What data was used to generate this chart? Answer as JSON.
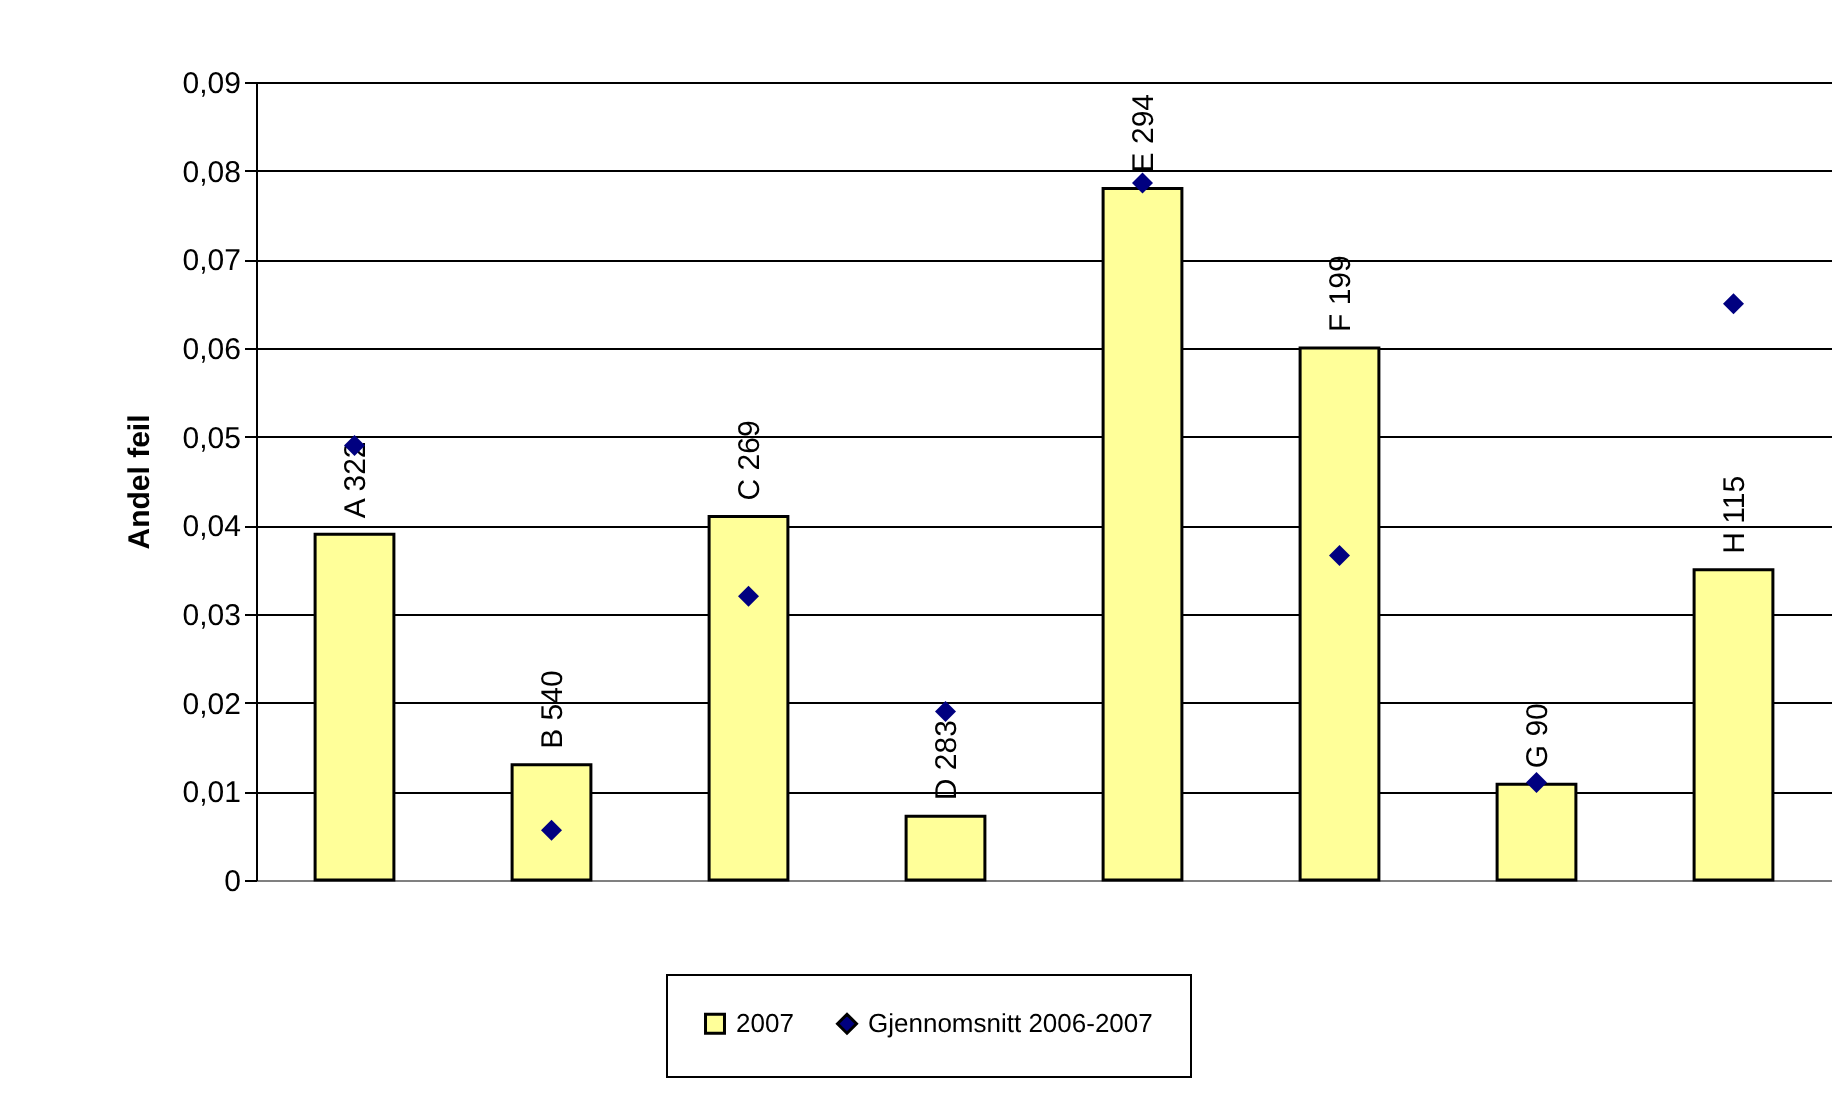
{
  "chart_data": {
    "type": "bar",
    "ylabel": "Andel feil",
    "categories": [
      "A 322",
      "B 540",
      "C 269",
      "D 283",
      "E 294",
      "F 199",
      "G 90",
      "H 115"
    ],
    "series": [
      {
        "name": "2007",
        "color": "#ffff99",
        "values": [
          0.039,
          0.013,
          0.041,
          0.0072,
          0.078,
          0.06,
          0.0108,
          0.035
        ]
      },
      {
        "name": "Gjennomsnitt 2006-2007",
        "type": "scatter",
        "marker": "diamond",
        "color": "#000080",
        "values": [
          0.049,
          0.0056,
          0.032,
          0.019,
          0.0786,
          0.0366,
          0.011,
          0.065
        ]
      }
    ],
    "ylim": [
      0,
      0.09
    ],
    "yticks": [
      {
        "value": 0,
        "label": "0"
      },
      {
        "value": 0.01,
        "label": "0,01"
      },
      {
        "value": 0.02,
        "label": "0,02"
      },
      {
        "value": 0.03,
        "label": "0,03"
      },
      {
        "value": 0.04,
        "label": "0,04"
      },
      {
        "value": 0.05,
        "label": "0,05"
      },
      {
        "value": 0.06,
        "label": "0,06"
      },
      {
        "value": 0.07,
        "label": "0,07"
      },
      {
        "value": 0.08,
        "label": "0,08"
      },
      {
        "value": 0.09,
        "label": "0,09"
      }
    ],
    "grid": "y",
    "legend": "bottom",
    "tick_labels": "y"
  }
}
